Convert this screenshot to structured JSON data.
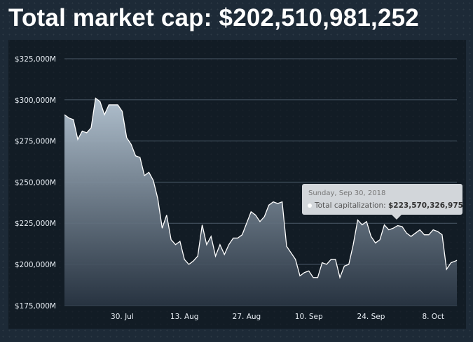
{
  "title": "Total market cap: $202,510,981,252",
  "chart_data": {
    "type": "area",
    "title": "Total market cap: $202,510,981,252",
    "xlabel": "",
    "ylabel": "",
    "x_start": "2018-07-17",
    "x_step_days": 1,
    "ylim": [
      175000,
      335000
    ],
    "y_ticks": [
      175000,
      200000,
      225000,
      250000,
      275000,
      300000,
      325000
    ],
    "y_tick_labels": [
      "$175,000M",
      "$200,000M",
      "$225,000M",
      "$250,000M",
      "$275,000M",
      "$300,000M",
      "$325,000M"
    ],
    "x_ticks": [
      {
        "day": 13,
        "label": "30. Jul"
      },
      {
        "day": 27,
        "label": "13. Aug"
      },
      {
        "day": 41,
        "label": "27. Aug"
      },
      {
        "day": 55,
        "label": "10. Sep"
      },
      {
        "day": 69,
        "label": "24. Sep"
      },
      {
        "day": 83,
        "label": "8. Oct"
      }
    ],
    "grid": true,
    "values": [
      291,
      289,
      288,
      276,
      281,
      280,
      283,
      301,
      299,
      291,
      297,
      297,
      297,
      293,
      277,
      273,
      266,
      265,
      254,
      256,
      251,
      240,
      222,
      230,
      215,
      212,
      214,
      203,
      200,
      202,
      205,
      224,
      212,
      217,
      205,
      212,
      206,
      212,
      216,
      216,
      218,
      225,
      232,
      230,
      226,
      229,
      236,
      238,
      237,
      238,
      211,
      207,
      203,
      193,
      195,
      196,
      192,
      192,
      201,
      200,
      203,
      203,
      192,
      199,
      200,
      212,
      227,
      224,
      226,
      217,
      213,
      215,
      224,
      221,
      222,
      223.57,
      223,
      219,
      217,
      219,
      221,
      218,
      218,
      221,
      220,
      218,
      197,
      201,
      202,
      202.5
    ],
    "tooltip": {
      "index": 75,
      "date": "Sunday, Sep 30, 2018",
      "label": "Total capitalization:",
      "value": "$223,570,326,975"
    },
    "colors": {
      "line": "#ffffff",
      "fill_top": "#b8c8d6",
      "fill_bottom": "#2a3644",
      "grid": "#4a5866"
    }
  }
}
